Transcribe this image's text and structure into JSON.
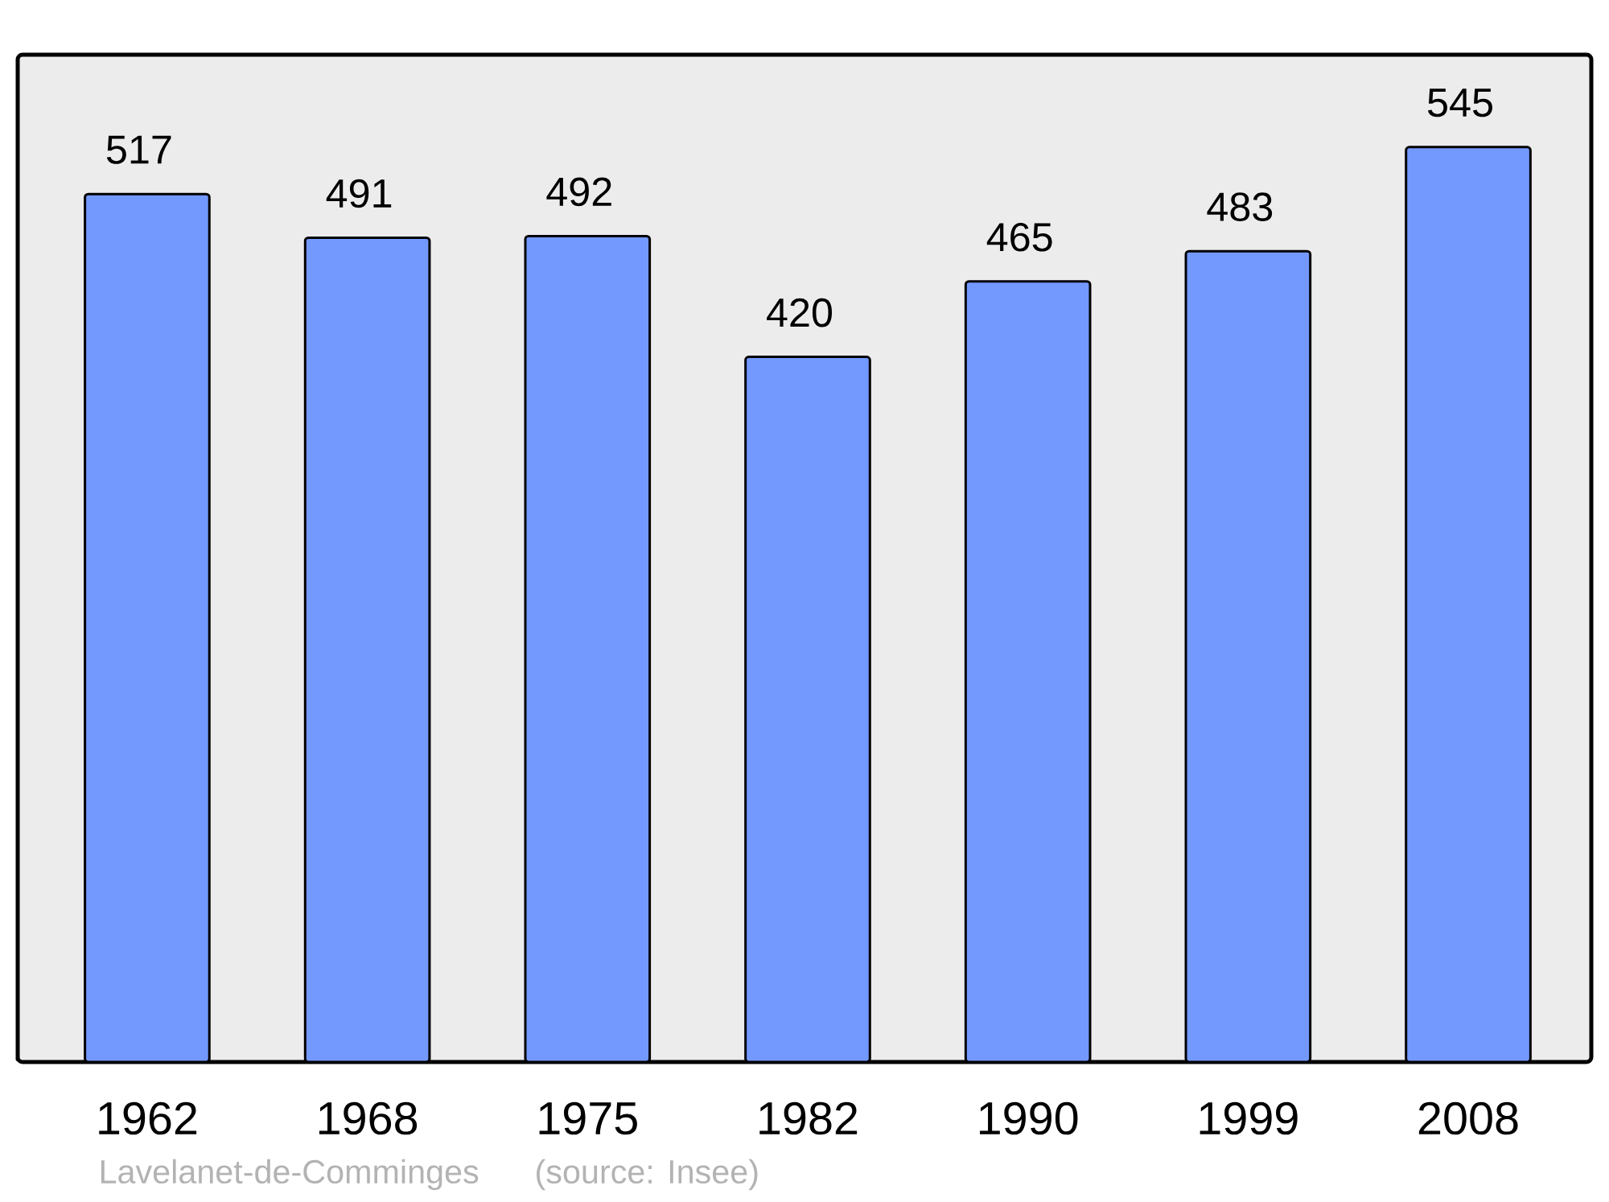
{
  "chart_data": {
    "type": "bar",
    "categories": [
      "1962",
      "1968",
      "1975",
      "1982",
      "1990",
      "1999",
      "2008"
    ],
    "values": [
      517,
      491,
      492,
      420,
      465,
      483,
      545
    ],
    "color": "#7399ff",
    "ylim": [
      0,
      600
    ],
    "data_labels": true,
    "tick_labels": "x",
    "annotations": [
      "Lavelanet-de-Comminges",
      "(source: Insee)"
    ]
  }
}
